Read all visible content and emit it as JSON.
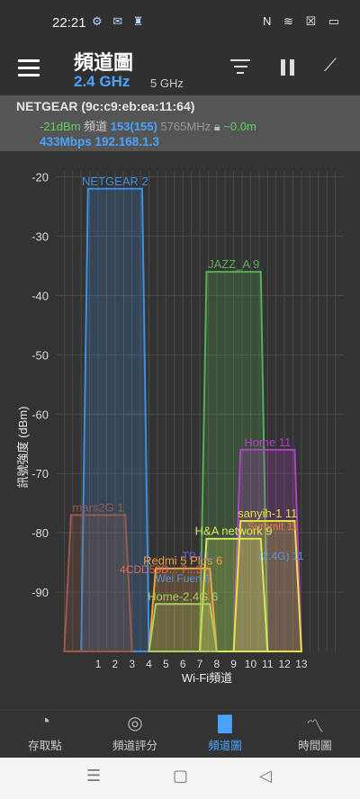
{
  "status": {
    "time": "22:21",
    "left_icons": "⚙ ✉ ♜",
    "right_icons": "N ≋ ☒ ▭"
  },
  "header": {
    "title": "頻道圖",
    "band_selected": "2.4 GHz",
    "band_other": "5 GHz"
  },
  "info": {
    "ssid": "NETGEAR (9c:c9:eb:ea:11:64)",
    "signal": "-21dBm",
    "channel_label": "頻道",
    "channel": "153(155)",
    "frequency": "5765MHz",
    "distance": "~0.0m",
    "speed_ip": "433Mbps 192.168.1.3"
  },
  "nav": {
    "items": [
      {
        "label": "存取點",
        "icon": "wifi-icon"
      },
      {
        "label": "頻道評分",
        "icon": "signal-rating-icon"
      },
      {
        "label": "頻道圖",
        "icon": "bar-chart-icon"
      },
      {
        "label": "時間圖",
        "icon": "line-chart-icon"
      }
    ],
    "active": 2
  },
  "chart_data": {
    "type": "area",
    "xlabel": "Wi-Fi頻道",
    "ylabel": "訊號強度 (dBm)",
    "x_ticks": [
      1,
      2,
      3,
      4,
      5,
      6,
      7,
      8,
      9,
      10,
      11,
      12,
      13
    ],
    "y_ticks": [
      -20,
      -30,
      -40,
      -50,
      -60,
      -70,
      -80,
      -90
    ],
    "ylim": [
      -100,
      -19
    ],
    "series": [
      {
        "name": "NETGEAR 2",
        "channel": 2,
        "level": -22,
        "color": "#3d8fe0"
      },
      {
        "name": "JAZZ_A 9",
        "channel": 9,
        "level": -36,
        "color": "#55b055"
      },
      {
        "name": "Home 11",
        "channel": 11,
        "level": -66,
        "color": "#b040c8"
      },
      {
        "name": "mars2G 1",
        "channel": 1,
        "level": -77,
        "color": "#9c5a4a"
      },
      {
        "name": "sanyih-1 11",
        "channel": 11,
        "level": -78,
        "color": "#e8e040"
      },
      {
        "name": "H&A network 9",
        "channel": 9,
        "level": -81,
        "color": "#d7e85a"
      },
      {
        "name": "Redmi 5 Plus 6",
        "channel": 6,
        "level": -86,
        "color": "#f0a040"
      },
      {
        "name": "Home-2.4G 6",
        "channel": 6,
        "level": -92,
        "color": "#a8d060"
      }
    ],
    "other_labels": [
      "Summit 11",
      "TP-LI...",
      "(2.4G) 11",
      "4CDD58D... 7...3",
      "Wei Fuen 6"
    ]
  }
}
